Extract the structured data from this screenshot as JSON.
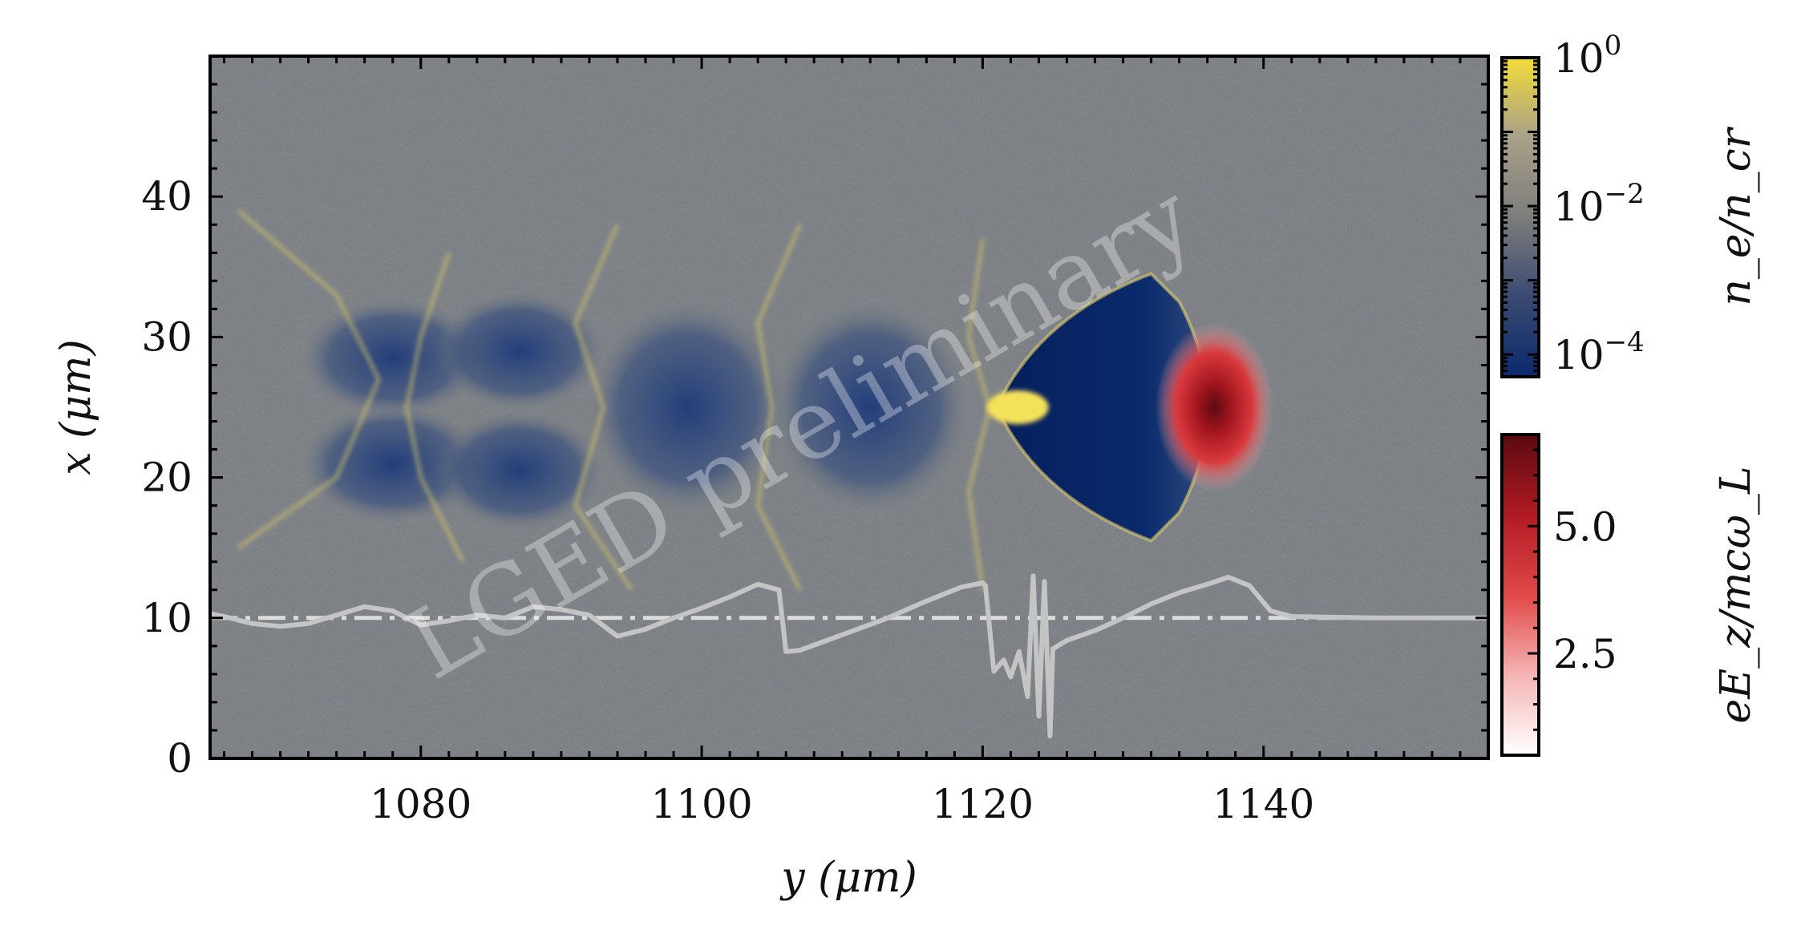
{
  "watermark": "LGED preliminary",
  "chart_data": {
    "type": "heatmap",
    "title": "",
    "xlabel": "y (μm)",
    "ylabel": "x (μm)",
    "xlim": [
      1065,
      1156
    ],
    "ylim": [
      0,
      50
    ],
    "xticks": [
      {
        "value": 1080,
        "label": "1080"
      },
      {
        "value": 1100,
        "label": "1100"
      },
      {
        "value": 1120,
        "label": "1120"
      },
      {
        "value": 1140,
        "label": "1140"
      }
    ],
    "yticks": [
      {
        "value": 0,
        "label": "0"
      },
      {
        "value": 10,
        "label": "10"
      },
      {
        "value": 20,
        "label": "20"
      },
      {
        "value": 30,
        "label": "30"
      },
      {
        "value": 40,
        "label": "40"
      }
    ],
    "colorbars": [
      {
        "name": "density",
        "label": "n_e/n_cr",
        "scale": "log",
        "range": [
          5e-05,
          1
        ],
        "ticks": [
          {
            "value": 1,
            "base": "10",
            "exp": "0"
          },
          {
            "value": 0.01,
            "base": "10",
            "exp": "−2"
          },
          {
            "value": 0.0001,
            "base": "10",
            "exp": "−4"
          }
        ],
        "colors": [
          "#0a2a6c",
          "#3a4a72",
          "#7d7d7d",
          "#a8a088",
          "#f2dc3a"
        ]
      },
      {
        "name": "field",
        "label": "eE_z/mcω_L",
        "scale": "linear",
        "range": [
          0.5,
          6.8
        ],
        "ticks": [
          {
            "value": 5.0,
            "label": "5.0"
          },
          {
            "value": 2.5,
            "label": "2.5"
          }
        ],
        "colors": [
          "#ffffff",
          "#f6b3b3",
          "#e04848",
          "#b01a22",
          "#5a0a10"
        ]
      }
    ],
    "features": {
      "cavities": [
        {
          "y": 1078,
          "x": 28.5,
          "ry": 6.5,
          "rx": 4.2
        },
        {
          "y": 1078,
          "x": 21.0,
          "ry": 6.5,
          "rx": 4.2
        },
        {
          "y": 1087,
          "x": 29.0,
          "ry": 6.0,
          "rx": 4.2
        },
        {
          "y": 1087,
          "x": 20.5,
          "ry": 6.0,
          "rx": 4.2
        },
        {
          "y": 1099,
          "x": 25.0,
          "ry": 7.0,
          "rx": 7.5
        },
        {
          "y": 1112,
          "x": 25.0,
          "ry": 7.0,
          "rx": 7.5
        }
      ],
      "bubble": {
        "tip_y": 1121,
        "tip_x": 25,
        "back_y": 1132,
        "top_x": 34.5,
        "bottom_x": 15.5
      },
      "pulse": {
        "y": 1136.5,
        "x": 25,
        "ry": 4.2,
        "rx": 6.0
      },
      "axis_line_x": 10,
      "lineout": {
        "color": "#c4c4c4",
        "points": [
          [
            1065,
            10.3
          ],
          [
            1066,
            10.1
          ],
          [
            1068,
            9.6
          ],
          [
            1070,
            9.4
          ],
          [
            1072,
            9.6
          ],
          [
            1074,
            10.2
          ],
          [
            1076,
            10.8
          ],
          [
            1078,
            10.5
          ],
          [
            1080,
            9.5
          ],
          [
            1082,
            9.8
          ],
          [
            1084,
            10.2
          ],
          [
            1086,
            10.0
          ],
          [
            1088,
            10.8
          ],
          [
            1090,
            10.6
          ],
          [
            1092,
            10.2
          ],
          [
            1094,
            8.7
          ],
          [
            1096,
            9.2
          ],
          [
            1098,
            10.0
          ],
          [
            1100,
            10.7
          ],
          [
            1102,
            11.5
          ],
          [
            1104,
            12.4
          ],
          [
            1105.5,
            12.0
          ],
          [
            1106,
            7.6
          ],
          [
            1107,
            7.7
          ],
          [
            1110,
            8.8
          ],
          [
            1113,
            9.9
          ],
          [
            1116,
            11.2
          ],
          [
            1118.5,
            12.2
          ],
          [
            1120,
            12.5
          ],
          [
            1120.2,
            12.3
          ],
          [
            1120.8,
            6.2
          ],
          [
            1121.5,
            7.0
          ],
          [
            1122,
            5.8
          ],
          [
            1122.6,
            7.6
          ],
          [
            1123.2,
            4.4
          ],
          [
            1123.6,
            13.0
          ],
          [
            1124.0,
            3.0
          ],
          [
            1124.4,
            12.6
          ],
          [
            1124.8,
            1.6
          ],
          [
            1125.0,
            7.8
          ],
          [
            1126,
            8.4
          ],
          [
            1128,
            9.1
          ],
          [
            1130,
            10.0
          ],
          [
            1132,
            11.0
          ],
          [
            1134,
            11.8
          ],
          [
            1136,
            12.4
          ],
          [
            1137.5,
            12.9
          ],
          [
            1139,
            12.3
          ],
          [
            1140.5,
            10.5
          ],
          [
            1142,
            10.1
          ],
          [
            1148,
            10.0
          ],
          [
            1156,
            10.0
          ]
        ]
      }
    }
  }
}
